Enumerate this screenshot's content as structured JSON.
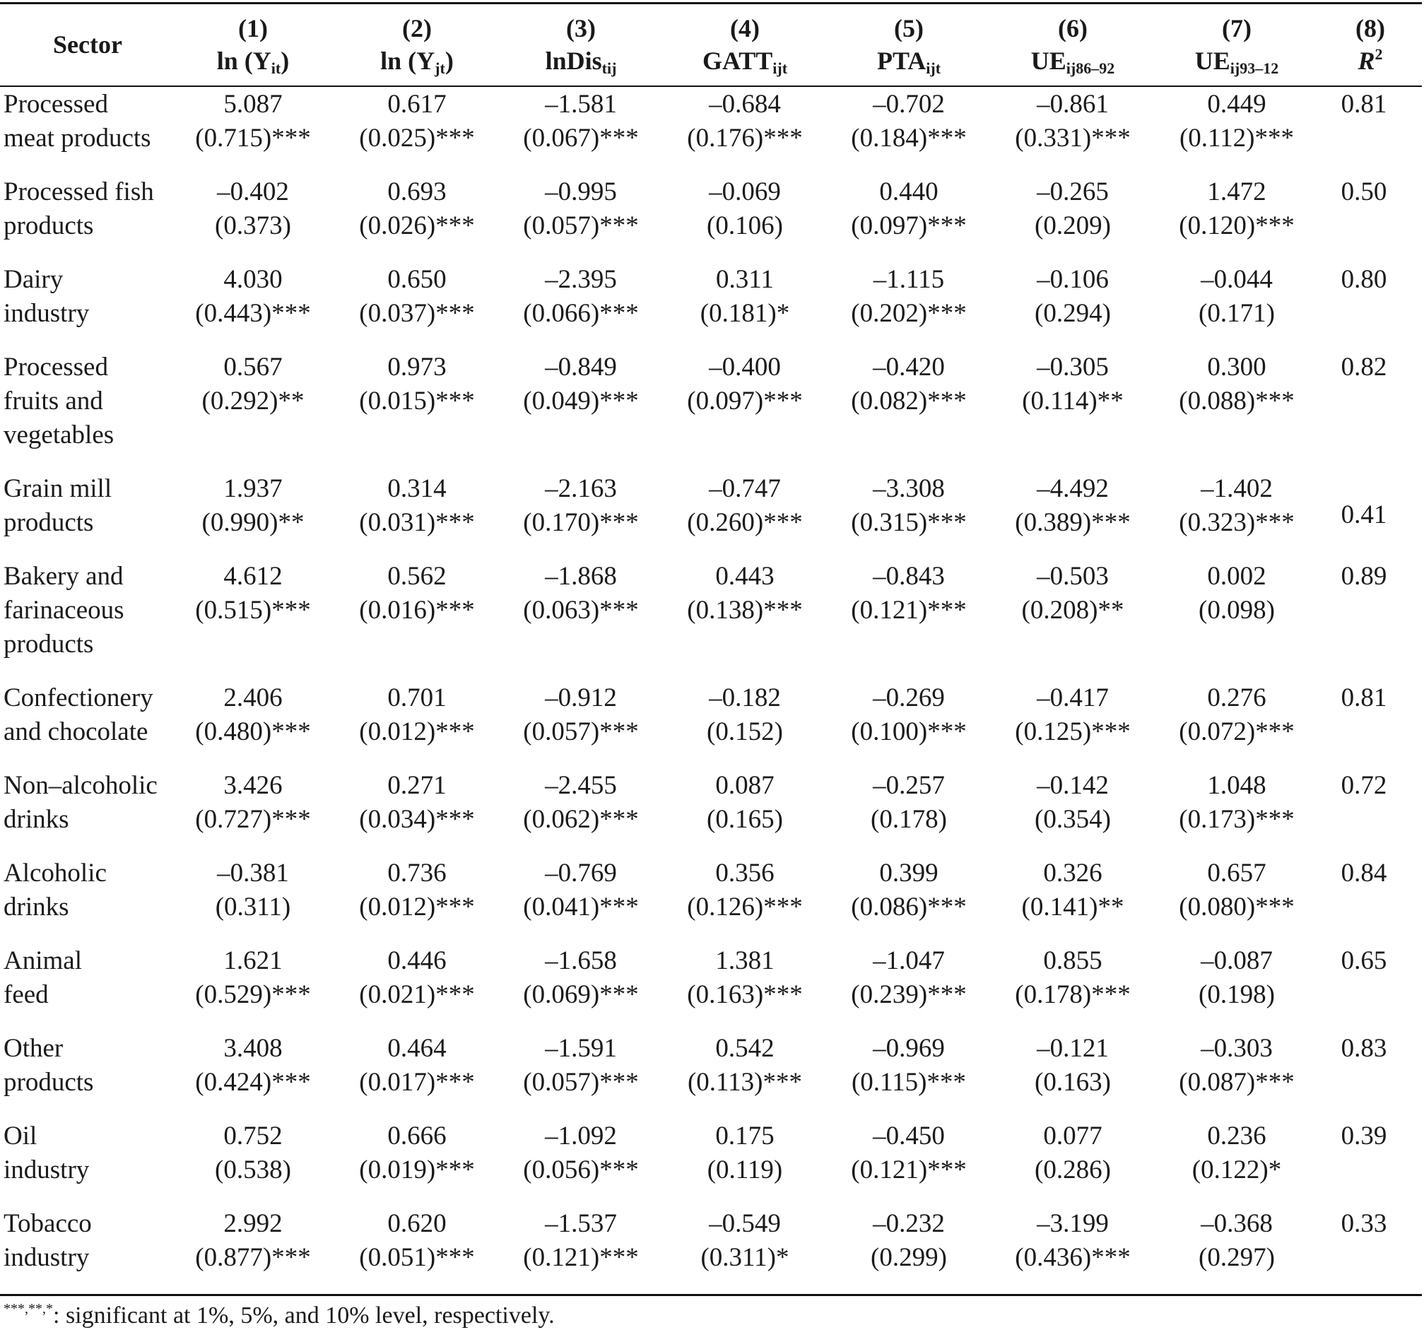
{
  "table": {
    "headers": {
      "sector": "Sector",
      "cols": [
        {
          "num": "(1)",
          "main": "ln (Y",
          "sub": "it",
          "tail": ")"
        },
        {
          "num": "(2)",
          "main": "ln (Y",
          "sub": "jt",
          "tail": ")"
        },
        {
          "num": "(3)",
          "main": "lnDis",
          "sub": "tij",
          "tail": ""
        },
        {
          "num": "(4)",
          "main": "GATT",
          "sub": "ijt",
          "tail": ""
        },
        {
          "num": "(5)",
          "main": "PTA",
          "sub": "ijt",
          "tail": ""
        },
        {
          "num": "(6)",
          "main": "UE",
          "sub": "ij86–92",
          "tail": ""
        },
        {
          "num": "(7)",
          "main": "UE",
          "sub": "ij93–12",
          "tail": ""
        }
      ],
      "r2": {
        "num": "(8)",
        "main": "R",
        "sup": "2"
      }
    },
    "rows": [
      {
        "sector": [
          "Processed",
          "meat products"
        ],
        "r2": "0.81",
        "cells": [
          [
            "5.087",
            "(0.715)***"
          ],
          [
            "0.617",
            "(0.025)***"
          ],
          [
            "–1.581",
            "(0.067)***"
          ],
          [
            "–0.684",
            "(0.176)***"
          ],
          [
            "–0.702",
            "(0.184)***"
          ],
          [
            "–0.861",
            "(0.331)***"
          ],
          [
            "0.449",
            "(0.112)***"
          ]
        ]
      },
      {
        "sector": [
          "Processed fish",
          "products"
        ],
        "r2": "0.50",
        "cells": [
          [
            "–0.402",
            "(0.373)"
          ],
          [
            "0.693",
            "(0.026)***"
          ],
          [
            "–0.995",
            "(0.057)***"
          ],
          [
            "–0.069",
            "(0.106)"
          ],
          [
            "0.440",
            "(0.097)***"
          ],
          [
            "–0.265",
            "(0.209)"
          ],
          [
            "1.472",
            "(0.120)***"
          ]
        ]
      },
      {
        "sector": [
          "Dairy",
          "industry"
        ],
        "r2": "0.80",
        "cells": [
          [
            "4.030",
            "(0.443)***"
          ],
          [
            "0.650",
            "(0.037)***"
          ],
          [
            "–2.395",
            "(0.066)***"
          ],
          [
            "0.311",
            "(0.181)*"
          ],
          [
            "–1.115",
            "(0.202)***"
          ],
          [
            "–0.106",
            "(0.294)"
          ],
          [
            "–0.044",
            "(0.171)"
          ]
        ]
      },
      {
        "sector": [
          "Processed",
          "fruits and",
          "vegetables"
        ],
        "r2": "0.82",
        "cells": [
          [
            "0.567",
            "(0.292)**"
          ],
          [
            "0.973",
            "(0.015)***"
          ],
          [
            "–0.849",
            "(0.049)***"
          ],
          [
            "–0.400",
            "(0.097)***"
          ],
          [
            "–0.420",
            "(0.082)***"
          ],
          [
            "–0.305",
            "(0.114)**"
          ],
          [
            "0.300",
            "(0.088)***"
          ]
        ]
      },
      {
        "sector": [
          "Grain mill",
          "products"
        ],
        "r2": "0.41",
        "cells": [
          [
            "1.937",
            "(0.990)**"
          ],
          [
            "0.314",
            "(0.031)***"
          ],
          [
            "–2.163",
            "(0.170)***"
          ],
          [
            "–0.747",
            "(0.260)***"
          ],
          [
            "–3.308",
            "(0.315)***"
          ],
          [
            "–4.492",
            "(0.389)***"
          ],
          [
            "–1.402",
            "(0.323)***"
          ]
        ]
      },
      {
        "sector": [
          "Bakery and",
          "farinaceous",
          "products"
        ],
        "r2": "0.89",
        "cells": [
          [
            "4.612",
            "(0.515)***"
          ],
          [
            "0.562",
            "(0.016)***"
          ],
          [
            "–1.868",
            "(0.063)***"
          ],
          [
            "0.443",
            "(0.138)***"
          ],
          [
            "–0.843",
            "(0.121)***"
          ],
          [
            "–0.503",
            "(0.208)**"
          ],
          [
            "0.002",
            "(0.098)"
          ]
        ]
      },
      {
        "sector": [
          "Confectionery",
          "and chocolate"
        ],
        "r2": "0.81",
        "cells": [
          [
            "2.406",
            "(0.480)***"
          ],
          [
            "0.701",
            "(0.012)***"
          ],
          [
            "–0.912",
            "(0.057)***"
          ],
          [
            "–0.182",
            "(0.152)"
          ],
          [
            "–0.269",
            "(0.100)***"
          ],
          [
            "–0.417",
            "(0.125)***"
          ],
          [
            "0.276",
            "(0.072)***"
          ]
        ]
      },
      {
        "sector": [
          "Non–alcoholic",
          "drinks"
        ],
        "r2": "0.72",
        "cells": [
          [
            "3.426",
            "(0.727)***"
          ],
          [
            "0.271",
            "(0.034)***"
          ],
          [
            "–2.455",
            "(0.062)***"
          ],
          [
            "0.087",
            "(0.165)"
          ],
          [
            "–0.257",
            "(0.178)"
          ],
          [
            "–0.142",
            "(0.354)"
          ],
          [
            "1.048",
            "(0.173)***"
          ]
        ]
      },
      {
        "sector": [
          "Alcoholic",
          "drinks"
        ],
        "r2": "0.84",
        "cells": [
          [
            "–0.381",
            "(0.311)"
          ],
          [
            "0.736",
            "(0.012)***"
          ],
          [
            "–0.769",
            "(0.041)***"
          ],
          [
            "0.356",
            "(0.126)***"
          ],
          [
            "0.399",
            "(0.086)***"
          ],
          [
            "0.326",
            "(0.141)**"
          ],
          [
            "0.657",
            "(0.080)***"
          ]
        ]
      },
      {
        "sector": [
          "Animal",
          "feed"
        ],
        "r2": "0.65",
        "cells": [
          [
            "1.621",
            "(0.529)***"
          ],
          [
            "0.446",
            "(0.021)***"
          ],
          [
            "–1.658",
            "(0.069)***"
          ],
          [
            "1.381",
            "(0.163)***"
          ],
          [
            "–1.047",
            "(0.239)***"
          ],
          [
            "0.855",
            "(0.178)***"
          ],
          [
            "–0.087",
            "(0.198)"
          ]
        ]
      },
      {
        "sector": [
          "Other",
          "products"
        ],
        "r2": "0.83",
        "cells": [
          [
            "3.408",
            "(0.424)***"
          ],
          [
            "0.464",
            "(0.017)***"
          ],
          [
            "–1.591",
            "(0.057)***"
          ],
          [
            "0.542",
            "(0.113)***"
          ],
          [
            "–0.969",
            "(0.115)***"
          ],
          [
            "–0.121",
            "(0.163)"
          ],
          [
            "–0.303",
            "(0.087)***"
          ]
        ]
      },
      {
        "sector": [
          "Oil",
          "industry"
        ],
        "r2": "0.39",
        "cells": [
          [
            "0.752",
            "(0.538)"
          ],
          [
            "0.666",
            "(0.019)***"
          ],
          [
            "–1.092",
            "(0.056)***"
          ],
          [
            "0.175",
            "(0.119)"
          ],
          [
            "–0.450",
            "(0.121)***"
          ],
          [
            "0.077",
            "(0.286)"
          ],
          [
            "0.236",
            "(0.122)*"
          ]
        ]
      },
      {
        "sector": [
          "Tobacco",
          "industry"
        ],
        "r2": "0.33",
        "cells": [
          [
            "2.992",
            "(0.877)***"
          ],
          [
            "0.620",
            "(0.051)***"
          ],
          [
            "–1.537",
            "(0.121)***"
          ],
          [
            "–0.549",
            "(0.311)*"
          ],
          [
            "–0.232",
            "(0.299)"
          ],
          [
            "–3.199",
            "(0.436)***"
          ],
          [
            "–0.368",
            "(0.297)"
          ]
        ]
      }
    ]
  },
  "footnote": {
    "stars": "***,**,*",
    "text": ": significant at 1%, 5%, and 10% level, respectively."
  }
}
